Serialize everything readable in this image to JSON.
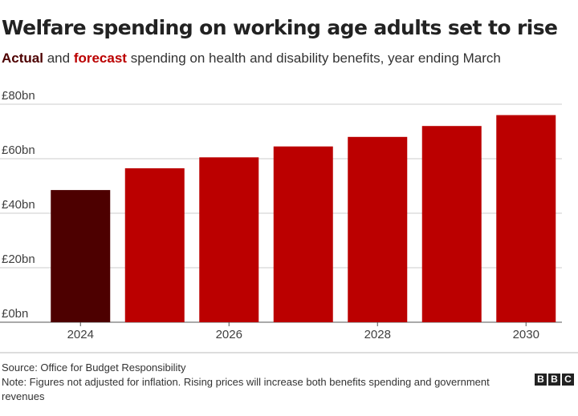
{
  "chart_data": {
    "type": "bar",
    "title": "Welfare spending on working age adults set to rise",
    "subtitle": [
      "and",
      "spending on health and disability benefits, year ending March"
    ],
    "categories": [
      "2024",
      null,
      "2026",
      null,
      "2028",
      null,
      "2030"
    ],
    "series": [
      {
        "name": "Actual",
        "color": "#4d0000",
        "values": [
          48.5,
          null,
          null,
          null,
          null,
          null,
          null
        ]
      },
      {
        "name": "forecast",
        "color": "#bb0000",
        "values": [
          null,
          56.5,
          60.5,
          64.5,
          68,
          72,
          76
        ]
      }
    ],
    "ylim": [
      0,
      80
    ],
    "yticks": [
      {
        "value": 0,
        "label": "£0bn"
      },
      {
        "value": 20,
        "label": "£20bn"
      },
      {
        "value": 40,
        "label": "£40bn"
      },
      {
        "value": 60,
        "label": "£60bn"
      },
      {
        "value": 80,
        "label": "£80bn"
      }
    ],
    "grid": true,
    "source": "Source: Office for Budget Responsibility",
    "note": "Note: Figures not adjusted for inflation. Rising prices will increase both benefits spending and government revenues",
    "logo": [
      "B",
      "B",
      "C"
    ]
  }
}
